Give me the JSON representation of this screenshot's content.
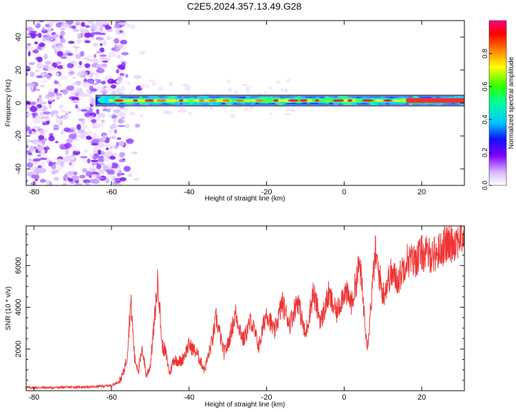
{
  "title": "C2E5.2024.357.13.49.G28",
  "chart_data": [
    {
      "type": "heatmap",
      "title": "C2E5.2024.357.13.49.G28",
      "xlabel": "Height of straight line (km)",
      "ylabel": "Frequency (Hz)",
      "xlim": [
        -82,
        31
      ],
      "ylim": [
        -50,
        50
      ],
      "xticks": [
        -80,
        -60,
        -40,
        -20,
        0,
        20
      ],
      "yticks": [
        -40,
        -20,
        0,
        20,
        40
      ],
      "colorbar": {
        "label": "Normalized spectral amplitude",
        "range": [
          0.0,
          1.0
        ],
        "ticks": [
          "0.0",
          "0.2",
          "0.4",
          "0.6",
          "0.8"
        ],
        "colormap": "rainbow (white-violet-blue-cyan-green-yellow-red-magenta)"
      },
      "features": {
        "noise_region_x": [
          -82,
          -58
        ],
        "signal_band_x": [
          -64,
          31
        ],
        "signal_frequency_hz": 1.5,
        "signal_band_halfwidth_hz": 3
      }
    },
    {
      "type": "line",
      "xlabel": "Height of straight line (km)",
      "ylabel": "SNR (10 * v/v)",
      "xlim": [
        -82,
        31
      ],
      "ylim": [
        0,
        7900
      ],
      "xticks": [
        -80,
        -60,
        -40,
        -20,
        0,
        20
      ],
      "yticks": [
        2000,
        4000,
        6000
      ],
      "color": "#ee3333",
      "x": [
        -82,
        -75,
        -70,
        -65,
        -60,
        -58,
        -57,
        -56,
        -55,
        -54,
        -53,
        -52,
        -51,
        -50,
        -49,
        -48,
        -47,
        -46,
        -45,
        -44,
        -42,
        -40,
        -38,
        -36,
        -34,
        -33,
        -31,
        -30,
        -28,
        -26,
        -24,
        -22,
        -20,
        -18,
        -16,
        -14,
        -12,
        -10,
        -8,
        -6,
        -4,
        -2,
        0,
        2,
        4,
        6,
        8,
        10,
        12,
        14,
        16,
        18,
        20,
        22,
        24,
        26,
        28,
        30,
        31
      ],
      "y": [
        150,
        150,
        170,
        180,
        250,
        450,
        800,
        1600,
        4300,
        1500,
        1000,
        2000,
        700,
        1200,
        3200,
        5400,
        2200,
        1800,
        800,
        1500,
        1400,
        2200,
        1800,
        1000,
        2400,
        3500,
        1800,
        2200,
        3700,
        2400,
        3400,
        2100,
        3800,
        2800,
        4200,
        3200,
        4400,
        2600,
        4700,
        3300,
        4600,
        3700,
        4800,
        4200,
        6100,
        2100,
        6600,
        4600,
        5600,
        5300,
        6300,
        6200,
        6600,
        6500,
        6600,
        7000,
        7100,
        7400,
        7500
      ]
    }
  ]
}
